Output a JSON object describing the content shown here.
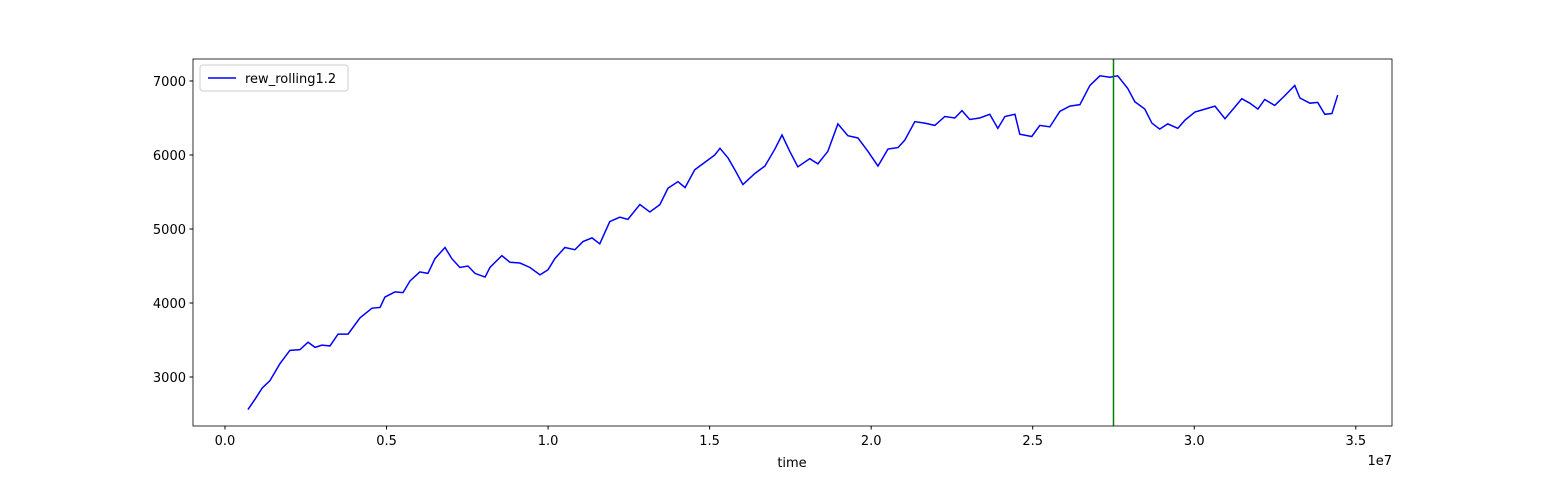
{
  "chart_data": {
    "type": "line",
    "xlabel": "time",
    "x_offset_label": "1e7",
    "x": [
      0.071,
      0.093,
      0.115,
      0.139,
      0.17,
      0.201,
      0.232,
      0.257,
      0.279,
      0.3,
      0.325,
      0.35,
      0.381,
      0.418,
      0.455,
      0.48,
      0.495,
      0.526,
      0.551,
      0.573,
      0.603,
      0.628,
      0.65,
      0.681,
      0.702,
      0.727,
      0.752,
      0.774,
      0.805,
      0.82,
      0.857,
      0.882,
      0.913,
      0.944,
      0.975,
      1.0,
      1.021,
      1.052,
      1.083,
      1.108,
      1.136,
      1.16,
      1.191,
      1.222,
      1.247,
      1.284,
      1.315,
      1.346,
      1.371,
      1.402,
      1.424,
      1.454,
      1.485,
      1.516,
      1.532,
      1.557,
      1.578,
      1.603,
      1.64,
      1.671,
      1.702,
      1.724,
      1.748,
      1.773,
      1.81,
      1.835,
      1.866,
      1.897,
      1.928,
      1.959,
      1.99,
      2.021,
      2.052,
      2.083,
      2.104,
      2.135,
      2.166,
      2.197,
      2.228,
      2.259,
      2.281,
      2.305,
      2.336,
      2.367,
      2.392,
      2.414,
      2.445,
      2.46,
      2.497,
      2.522,
      2.553,
      2.584,
      2.615,
      2.646,
      2.677,
      2.708,
      2.739,
      2.763,
      2.794,
      2.816,
      2.847,
      2.869,
      2.893,
      2.918,
      2.949,
      2.971,
      3.002,
      3.033,
      3.064,
      3.095,
      3.126,
      3.147,
      3.172,
      3.197,
      3.218,
      3.249,
      3.28,
      3.311,
      3.327,
      3.358,
      3.382,
      3.404,
      3.426,
      3.444
    ],
    "series": [
      {
        "name": "rew_rolling1.2",
        "color": "#0000ff",
        "values": [
          2560,
          2700,
          2850,
          2950,
          3180,
          3360,
          3370,
          3470,
          3400,
          3430,
          3420,
          3580,
          3580,
          3800,
          3930,
          3940,
          4080,
          4150,
          4140,
          4300,
          4420,
          4400,
          4600,
          4750,
          4600,
          4480,
          4500,
          4400,
          4350,
          4480,
          4640,
          4550,
          4540,
          4480,
          4380,
          4450,
          4600,
          4750,
          4720,
          4830,
          4880,
          4800,
          5100,
          5160,
          5130,
          5330,
          5230,
          5330,
          5550,
          5640,
          5560,
          5800,
          5900,
          6000,
          6090,
          5960,
          5800,
          5600,
          5750,
          5850,
          6080,
          6270,
          6050,
          5840,
          5950,
          5880,
          6050,
          6420,
          6260,
          6230,
          6050,
          5850,
          6080,
          6100,
          6200,
          6450,
          6430,
          6400,
          6520,
          6500,
          6600,
          6480,
          6500,
          6550,
          6360,
          6520,
          6550,
          6280,
          6250,
          6400,
          6380,
          6590,
          6660,
          6680,
          6940,
          7070,
          7050,
          7070,
          6900,
          6720,
          6620,
          6430,
          6350,
          6420,
          6360,
          6470,
          6580,
          6620,
          6660,
          6490,
          6650,
          6760,
          6700,
          6620,
          6750,
          6670,
          6800,
          6940,
          6770,
          6700,
          6710,
          6550,
          6560,
          6810
        ]
      }
    ],
    "vline": {
      "x": 2.75,
      "color": "#008000"
    },
    "xlim": [
      -0.099,
      3.612
    ],
    "xticks": [
      {
        "value": 0,
        "label": "0.0"
      },
      0.5,
      {
        "value": 1,
        "label": "1.0"
      },
      1.5,
      {
        "value": 2,
        "label": "2.0"
      },
      2.5,
      {
        "value": 3,
        "label": "3.0"
      },
      3.5
    ],
    "ylim": [
      2338,
      7297
    ],
    "yticks": [
      3000,
      4000,
      5000,
      6000,
      7000
    ],
    "grid": false,
    "legend": "upper left"
  }
}
